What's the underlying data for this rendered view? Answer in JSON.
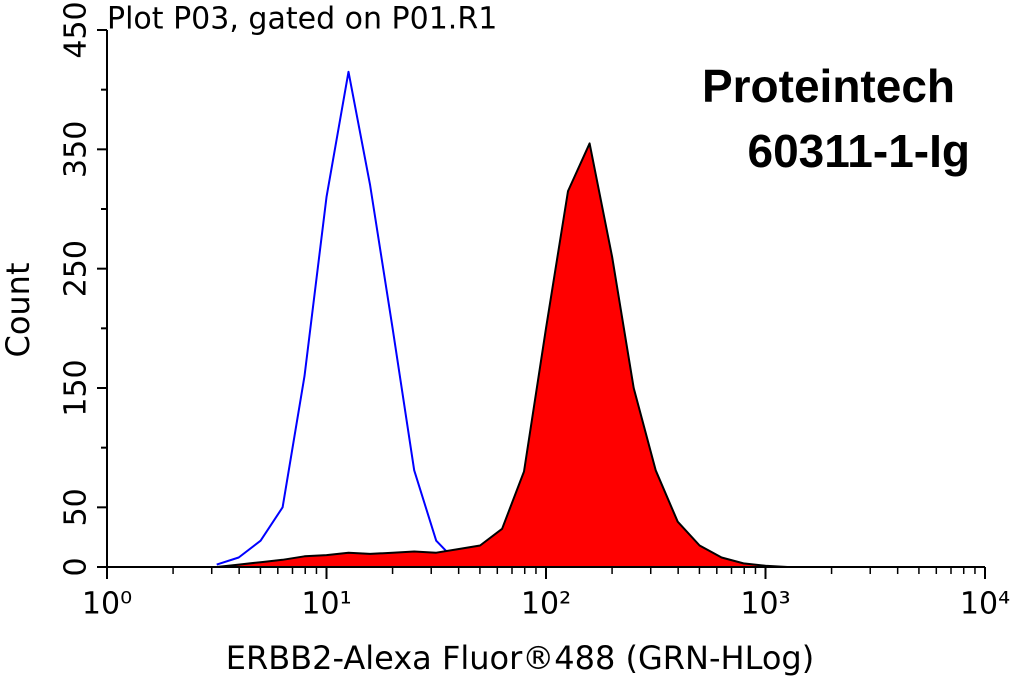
{
  "chart_data": {
    "type": "histogram-overlay",
    "title": "Plot P03, gated on P01.R1",
    "x_label": "ERBB2-Alexa Fluor®488 (GRN-HLog)",
    "y_label": "Count",
    "annotations": [
      "Proteintech",
      "60311-1-Ig"
    ],
    "x_scale": "log",
    "xlim": [
      1,
      10000
    ],
    "xticks": [
      {
        "value": 1,
        "label": "10⁰"
      },
      {
        "value": 10,
        "label": "10¹"
      },
      {
        "value": 100,
        "label": "10²"
      },
      {
        "value": 1000,
        "label": "10³"
      },
      {
        "value": 10000,
        "label": "10⁴"
      }
    ],
    "ylim": [
      0,
      450
    ],
    "yticks": [
      0,
      50,
      150,
      250,
      350,
      450
    ],
    "y_minor_ticks": [
      100,
      200,
      300,
      400
    ],
    "x": [
      3.16,
      3.98,
      5.01,
      6.31,
      7.94,
      10,
      12.6,
      15.8,
      20,
      25.1,
      31.6,
      39.8,
      50.1,
      63.1,
      79.4,
      100,
      126,
      158,
      200,
      251,
      316,
      398,
      501,
      631,
      794,
      1000,
      1259
    ],
    "series": [
      {
        "color": "#0000ff",
        "filled": false,
        "values": [
          2,
          8,
          22,
          50,
          160,
          310,
          415,
          320,
          200,
          81,
          22,
          3,
          1,
          0,
          0,
          0,
          0,
          0,
          0,
          0,
          0,
          0,
          0,
          0,
          0,
          0,
          0
        ]
      },
      {
        "color": "#000000",
        "fill": "#ff0000",
        "filled": true,
        "values": [
          0,
          2,
          4,
          6,
          9,
          10,
          12,
          11,
          12,
          13,
          12,
          15,
          18,
          32,
          80,
          200,
          315,
          355,
          260,
          150,
          81,
          38,
          18,
          8,
          3,
          1,
          0
        ]
      }
    ]
  }
}
